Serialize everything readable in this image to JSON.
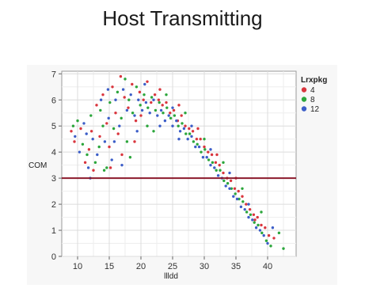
{
  "page": {
    "title": "Host Transmitting"
  },
  "chart_data": {
    "type": "scatter",
    "title": "Host Transmitting",
    "xlabel": "llldd",
    "ylabel": "COM",
    "xlim": [
      7.5,
      44.5
    ],
    "ylim": [
      0,
      7.1
    ],
    "x_ticks": [
      10,
      15,
      20,
      25,
      30,
      35,
      40
    ],
    "y_ticks": [
      0,
      1,
      2,
      3,
      4,
      5,
      6,
      7
    ],
    "grid": true,
    "legend_title": "Lrxpkg",
    "legend_position": "right",
    "reference_line": {
      "axis": "y",
      "value": 3,
      "color": "#8b1a2b"
    },
    "series": [
      {
        "name": "4",
        "color": "#d9363e",
        "points": [
          [
            9.0,
            4.8
          ],
          [
            9.5,
            4.4
          ],
          [
            10.5,
            4.9
          ],
          [
            11.2,
            3.6
          ],
          [
            11.8,
            4.1
          ],
          [
            12.5,
            3.3
          ],
          [
            13.0,
            5.8
          ],
          [
            13.5,
            4.6
          ],
          [
            14.0,
            6.2
          ],
          [
            14.6,
            5.1
          ],
          [
            15.0,
            4.2
          ],
          [
            15.5,
            6.5
          ],
          [
            16.0,
            5.5
          ],
          [
            16.8,
            6.9
          ],
          [
            17.4,
            6.1
          ],
          [
            18.0,
            5.7
          ],
          [
            18.6,
            6.6
          ],
          [
            19.2,
            5.2
          ],
          [
            19.8,
            6.3
          ],
          [
            20.4,
            6.0
          ],
          [
            21.0,
            6.7
          ],
          [
            21.6,
            5.9
          ],
          [
            22.2,
            6.2
          ],
          [
            22.8,
            6.0
          ],
          [
            23.4,
            5.8
          ],
          [
            24.0,
            5.9
          ],
          [
            24.6,
            5.5
          ],
          [
            25.2,
            5.6
          ],
          [
            25.8,
            5.2
          ],
          [
            26.4,
            5.4
          ],
          [
            27.0,
            5.0
          ],
          [
            27.6,
            4.9
          ],
          [
            28.2,
            4.8
          ],
          [
            28.8,
            4.5
          ],
          [
            29.4,
            4.5
          ],
          [
            30.0,
            4.2
          ],
          [
            30.6,
            4.0
          ],
          [
            31.2,
            3.9
          ],
          [
            31.8,
            3.6
          ],
          [
            32.4,
            3.5
          ],
          [
            33.0,
            3.2
          ],
          [
            33.6,
            3.0
          ],
          [
            34.2,
            2.9
          ],
          [
            34.8,
            2.6
          ],
          [
            35.4,
            2.5
          ],
          [
            36.0,
            2.3
          ],
          [
            36.6,
            2.0
          ],
          [
            37.2,
            1.8
          ],
          [
            37.8,
            1.6
          ],
          [
            38.4,
            1.5
          ],
          [
            39.0,
            1.2
          ],
          [
            39.6,
            1.1
          ],
          [
            40.2,
            0.8
          ],
          [
            41.0,
            0.7
          ],
          [
            19.0,
            4.4
          ],
          [
            17.0,
            3.9
          ],
          [
            15.2,
            3.4
          ],
          [
            23.0,
            6.4
          ],
          [
            26.0,
            5.8
          ],
          [
            29.0,
            4.9
          ],
          [
            32.0,
            3.9
          ],
          [
            35.0,
            3.0
          ],
          [
            38.0,
            1.4
          ],
          [
            16.4,
            4.7
          ],
          [
            20.0,
            5.4
          ],
          [
            12.2,
            4.8
          ]
        ]
      },
      {
        "name": "8",
        "color": "#2ca63c",
        "points": [
          [
            9.3,
            5.0
          ],
          [
            10.0,
            5.2
          ],
          [
            10.8,
            4.3
          ],
          [
            11.5,
            3.9
          ],
          [
            12.1,
            5.4
          ],
          [
            12.8,
            3.6
          ],
          [
            13.4,
            4.2
          ],
          [
            14.0,
            5.0
          ],
          [
            14.6,
            3.4
          ],
          [
            15.1,
            5.9
          ],
          [
            15.7,
            4.9
          ],
          [
            16.3,
            6.3
          ],
          [
            16.9,
            5.3
          ],
          [
            17.5,
            6.8
          ],
          [
            18.1,
            6.0
          ],
          [
            18.7,
            5.5
          ],
          [
            19.3,
            6.5
          ],
          [
            19.9,
            5.8
          ],
          [
            20.5,
            6.2
          ],
          [
            21.1,
            5.7
          ],
          [
            21.7,
            6.1
          ],
          [
            22.3,
            5.6
          ],
          [
            22.9,
            5.9
          ],
          [
            23.5,
            5.5
          ],
          [
            24.1,
            5.7
          ],
          [
            24.7,
            5.3
          ],
          [
            25.3,
            5.4
          ],
          [
            25.9,
            5.0
          ],
          [
            26.5,
            5.1
          ],
          [
            27.1,
            4.7
          ],
          [
            27.7,
            4.7
          ],
          [
            28.3,
            4.4
          ],
          [
            28.9,
            4.3
          ],
          [
            29.5,
            4.0
          ],
          [
            30.1,
            4.1
          ],
          [
            30.7,
            3.7
          ],
          [
            31.3,
            3.6
          ],
          [
            31.9,
            3.3
          ],
          [
            32.5,
            3.3
          ],
          [
            33.1,
            2.9
          ],
          [
            33.7,
            2.8
          ],
          [
            34.3,
            2.6
          ],
          [
            34.9,
            2.4
          ],
          [
            35.5,
            2.2
          ],
          [
            36.1,
            2.1
          ],
          [
            36.7,
            1.7
          ],
          [
            37.3,
            1.6
          ],
          [
            37.9,
            1.3
          ],
          [
            38.5,
            1.2
          ],
          [
            39.1,
            0.9
          ],
          [
            39.8,
            0.6
          ],
          [
            40.5,
            0.4
          ],
          [
            42.5,
            0.3
          ],
          [
            41.8,
            0.9
          ],
          [
            22.0,
            4.8
          ],
          [
            18.3,
            3.8
          ],
          [
            14.2,
            3.3
          ],
          [
            24.0,
            6.2
          ],
          [
            27.0,
            5.5
          ],
          [
            30.0,
            4.5
          ],
          [
            33.0,
            3.6
          ],
          [
            36.0,
            2.6
          ],
          [
            39.0,
            1.7
          ],
          [
            13.6,
            5.6
          ],
          [
            17.8,
            4.4
          ],
          [
            21.0,
            5.0
          ]
        ]
      },
      {
        "name": "12",
        "color": "#3c5ec8",
        "points": [
          [
            9.6,
            4.6
          ],
          [
            10.3,
            4.0
          ],
          [
            11.0,
            5.1
          ],
          [
            11.7,
            3.4
          ],
          [
            12.4,
            4.5
          ],
          [
            13.1,
            3.9
          ],
          [
            13.7,
            6.0
          ],
          [
            14.3,
            4.4
          ],
          [
            14.9,
            5.3
          ],
          [
            15.4,
            3.7
          ],
          [
            16.0,
            6.0
          ],
          [
            16.6,
            5.0
          ],
          [
            17.2,
            6.4
          ],
          [
            17.8,
            5.6
          ],
          [
            18.4,
            6.2
          ],
          [
            19.0,
            5.4
          ],
          [
            19.6,
            6.0
          ],
          [
            20.2,
            5.6
          ],
          [
            20.8,
            5.9
          ],
          [
            21.4,
            5.5
          ],
          [
            22.0,
            6.0
          ],
          [
            22.6,
            5.4
          ],
          [
            23.2,
            5.6
          ],
          [
            23.8,
            5.2
          ],
          [
            24.4,
            5.4
          ],
          [
            25.0,
            5.0
          ],
          [
            25.6,
            5.2
          ],
          [
            26.2,
            4.8
          ],
          [
            26.8,
            4.9
          ],
          [
            27.4,
            4.5
          ],
          [
            28.0,
            4.6
          ],
          [
            28.6,
            4.2
          ],
          [
            29.2,
            4.2
          ],
          [
            29.8,
            3.8
          ],
          [
            30.4,
            3.8
          ],
          [
            31.0,
            3.5
          ],
          [
            31.6,
            3.4
          ],
          [
            32.2,
            3.1
          ],
          [
            32.8,
            3.0
          ],
          [
            33.4,
            2.7
          ],
          [
            34.0,
            2.6
          ],
          [
            34.6,
            2.3
          ],
          [
            35.2,
            2.2
          ],
          [
            35.8,
            1.9
          ],
          [
            36.4,
            1.8
          ],
          [
            37.0,
            1.5
          ],
          [
            37.6,
            1.4
          ],
          [
            38.2,
            1.1
          ],
          [
            38.8,
            1.0
          ],
          [
            39.4,
            0.8
          ],
          [
            40.0,
            0.5
          ],
          [
            40.8,
            1.1
          ],
          [
            15.8,
            4.4
          ],
          [
            19.4,
            4.8
          ],
          [
            25.0,
            5.7
          ],
          [
            28.0,
            5.0
          ],
          [
            31.0,
            4.1
          ],
          [
            34.0,
            3.2
          ],
          [
            37.0,
            2.0
          ],
          [
            12.0,
            3.0
          ],
          [
            17.0,
            3.5
          ],
          [
            23.0,
            5.0
          ],
          [
            26.0,
            4.5
          ],
          [
            20.6,
            6.6
          ],
          [
            14.8,
            6.4
          ],
          [
            11.4,
            4.7
          ]
        ]
      }
    ]
  }
}
